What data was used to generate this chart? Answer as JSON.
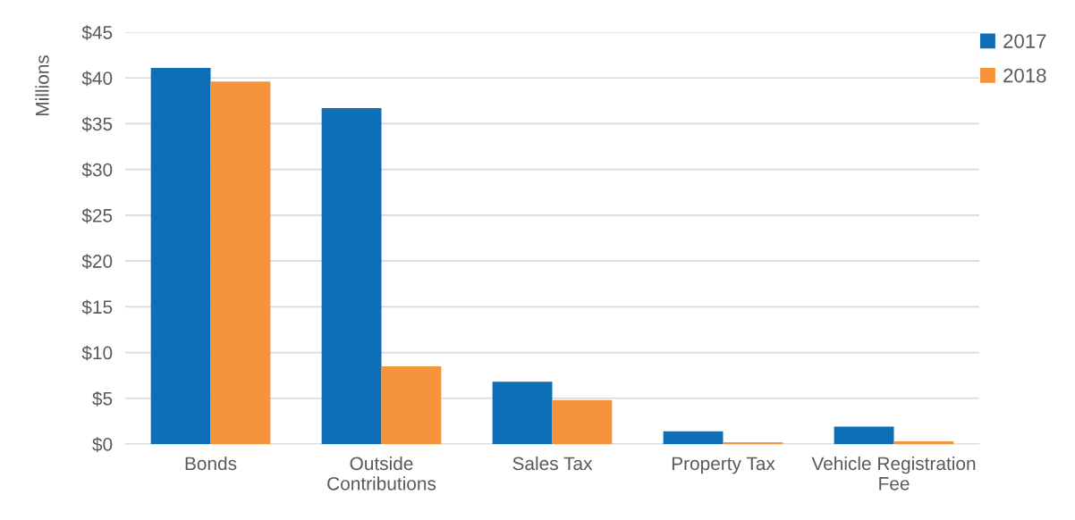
{
  "chart_data": {
    "type": "bar",
    "ylabel": "Millions",
    "categories": [
      "Bonds",
      "Outside\nContributions",
      "Sales Tax",
      "Property Tax",
      "Vehicle Registration\nFee"
    ],
    "series": [
      {
        "name": "2017",
        "color": "#0e6eb8",
        "values": [
          41.1,
          36.7,
          6.8,
          1.4,
          1.9
        ]
      },
      {
        "name": "2018",
        "color": "#f5943a",
        "values": [
          39.6,
          8.5,
          4.8,
          0.2,
          0.3
        ]
      }
    ],
    "ylim": [
      0,
      45
    ],
    "yticks": [
      {
        "value": 0,
        "label": "$0"
      },
      {
        "value": 5,
        "label": "$5"
      },
      {
        "value": 10,
        "label": "$10"
      },
      {
        "value": 15,
        "label": "$15"
      },
      {
        "value": 20,
        "label": "$20"
      },
      {
        "value": 25,
        "label": "$25"
      },
      {
        "value": 30,
        "label": "$30"
      },
      {
        "value": 35,
        "label": "$35"
      },
      {
        "value": 40,
        "label": "$40"
      },
      {
        "value": 45,
        "label": "$45"
      }
    ],
    "grid": "y",
    "legend": "top right"
  }
}
